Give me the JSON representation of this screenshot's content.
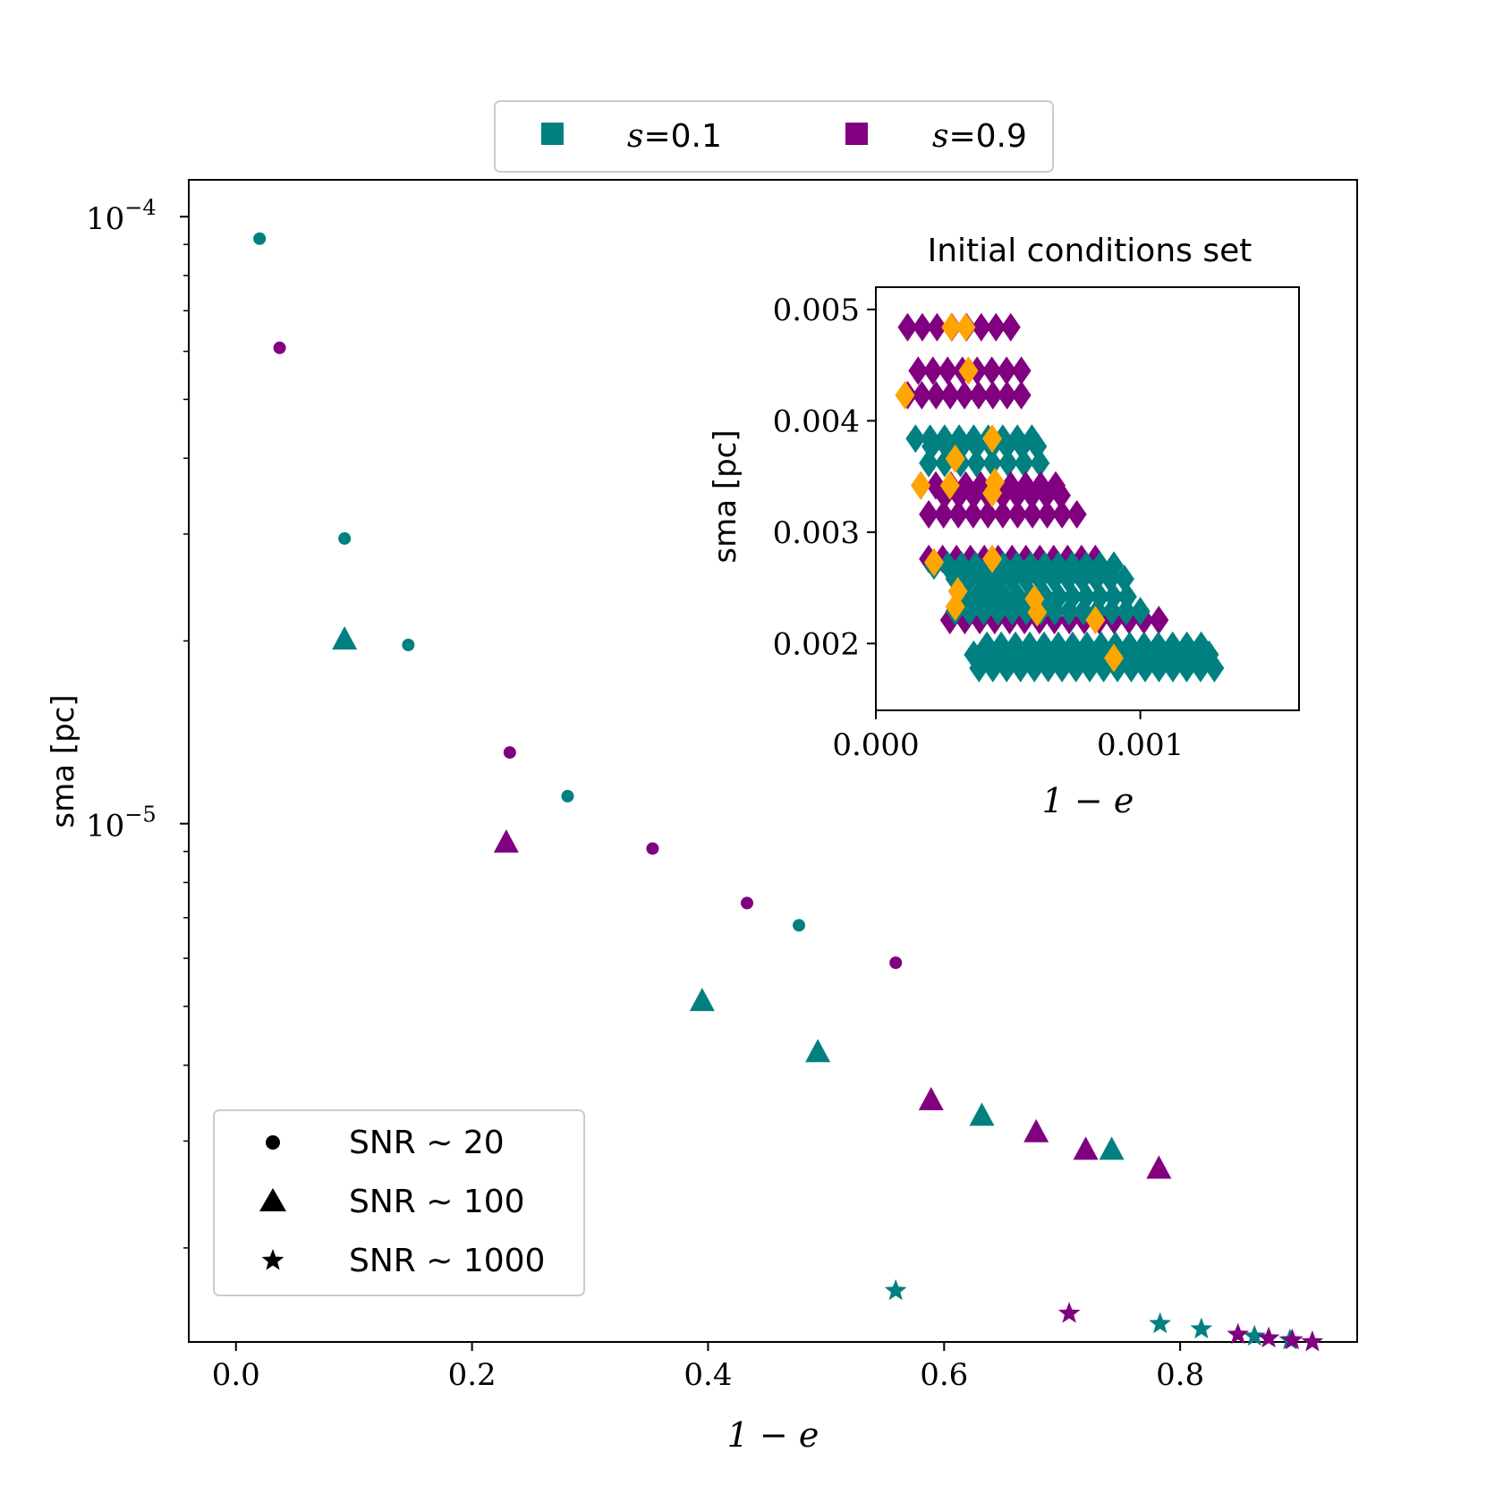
{
  "chart_data": [
    {
      "type": "scatter",
      "title": "",
      "xlabel": "1 − e",
      "ylabel": "sma [pc]",
      "xlim": [
        -0.04,
        0.95
      ],
      "ylim": [
        1.4e-06,
        0.000115
      ],
      "yscale": "log",
      "grid": false,
      "xticks": [
        {
          "value": 0.0,
          "label": "0.0"
        },
        {
          "value": 0.2,
          "label": "0.2"
        },
        {
          "value": 0.4,
          "label": "0.4"
        },
        {
          "value": 0.6,
          "label": "0.6"
        },
        {
          "value": 0.8,
          "label": "0.8"
        }
      ],
      "yticks": [
        {
          "value": 0.0001,
          "base": "10",
          "exp": "−4"
        },
        {
          "value": 1e-05,
          "base": "10",
          "exp": "−5"
        }
      ],
      "color_legend": {
        "placement": "above plot",
        "entries": [
          {
            "label_var": "s",
            "label_eq": "=0.1",
            "color": "#008080"
          },
          {
            "label_var": "s",
            "label_eq": "=0.9",
            "color": "#800080"
          }
        ]
      },
      "marker_legend": {
        "placement": "lower-left",
        "entries": [
          {
            "marker": "circle",
            "label": "SNR ∼ 20"
          },
          {
            "marker": "triangle",
            "label": "SNR ∼ 100"
          },
          {
            "marker": "star",
            "label": "SNR ∼ 1000"
          }
        ]
      },
      "series": [
        {
          "name": "s=0.1, SNR ~ 20",
          "color": "#008080",
          "marker": "circle",
          "points": [
            [
              0.02,
              9.2e-05
            ],
            [
              0.092,
              2.95e-05
            ],
            [
              0.146,
              1.97e-05
            ],
            [
              0.281,
              1.11e-05
            ],
            [
              0.477,
              6.8e-06
            ]
          ]
        },
        {
          "name": "s=0.9, SNR ~ 20",
          "color": "#800080",
          "marker": "circle",
          "points": [
            [
              0.037,
              6.08e-05
            ],
            [
              0.232,
              1.31e-05
            ],
            [
              0.353,
              9.1e-06
            ],
            [
              0.433,
              7.4e-06
            ],
            [
              0.559,
              5.9e-06
            ]
          ]
        },
        {
          "name": "s=0.1, SNR ~ 100",
          "color": "#008080",
          "marker": "triangle",
          "points": [
            [
              0.092,
              2.01e-05
            ],
            [
              0.395,
              5.1e-06
            ],
            [
              0.493,
              4.2e-06
            ],
            [
              0.632,
              3.3e-06
            ],
            [
              0.742,
              2.9e-06
            ]
          ]
        },
        {
          "name": "s=0.9, SNR ~ 100",
          "color": "#800080",
          "marker": "triangle",
          "points": [
            [
              0.229,
              9.3e-06
            ],
            [
              0.589,
              3.5e-06
            ],
            [
              0.678,
              3.1e-06
            ],
            [
              0.72,
              2.9e-06
            ],
            [
              0.782,
              2.7e-06
            ]
          ]
        },
        {
          "name": "s=0.1, SNR ~ 1000",
          "color": "#008080",
          "marker": "star",
          "points": [
            [
              0.559,
              1.7e-06
            ],
            [
              0.783,
              1.5e-06
            ],
            [
              0.818,
              1.47e-06
            ],
            [
              0.863,
              1.43e-06
            ],
            [
              0.893,
              1.41e-06
            ]
          ]
        },
        {
          "name": "s=0.9, SNR ~ 1000",
          "color": "#800080",
          "marker": "star",
          "points": [
            [
              0.706,
              1.56e-06
            ],
            [
              0.849,
              1.44e-06
            ],
            [
              0.875,
              1.42e-06
            ],
            [
              0.895,
              1.41e-06
            ],
            [
              0.912,
              1.4e-06
            ]
          ]
        }
      ]
    },
    {
      "type": "scatter",
      "title": "Initial conditions set",
      "xlabel": "1 − e",
      "ylabel": "sma [pc]",
      "xlim": [
        0.0,
        0.0016
      ],
      "ylim": [
        0.0014,
        0.0052
      ],
      "yscale": "linear",
      "grid": false,
      "xticks": [
        {
          "value": 0.0,
          "label": "0.000"
        },
        {
          "value": 0.001,
          "label": "0.001"
        }
      ],
      "yticks": [
        {
          "value": 0.002,
          "label": "0.002"
        },
        {
          "value": 0.003,
          "label": "0.003"
        },
        {
          "value": 0.004,
          "label": "0.004"
        },
        {
          "value": 0.005,
          "label": "0.005"
        }
      ],
      "marker": "diamond",
      "rows": [
        {
          "color": "#800080",
          "y": 0.00484,
          "x_start": 0.00012,
          "x_end": 0.00051,
          "count": 8
        },
        {
          "color": "#800080",
          "y": 0.00445,
          "x_start": 0.00016,
          "x_end": 0.00055,
          "count": 8
        },
        {
          "color": "#800080",
          "y": 0.00423,
          "x_start": 0.00012,
          "x_end": 0.00055,
          "count": 9
        },
        {
          "color": "#008080",
          "y": 0.00384,
          "x_start": 0.00015,
          "x_end": 0.00059,
          "count": 9
        },
        {
          "color": "#008080",
          "y": 0.00377,
          "x_start": 0.00021,
          "x_end": 0.00061,
          "count": 8
        },
        {
          "color": "#008080",
          "y": 0.00362,
          "x_start": 0.0002,
          "x_end": 0.00062,
          "count": 8
        },
        {
          "color": "#800080",
          "y": 0.00342,
          "x_start": 0.00017,
          "x_end": 0.00068,
          "count": 10
        },
        {
          "color": "#800080",
          "y": 0.00333,
          "x_start": 0.00026,
          "x_end": 0.0007,
          "count": 9
        },
        {
          "color": "#800080",
          "y": 0.00316,
          "x_start": 0.0002,
          "x_end": 0.00076,
          "count": 11
        },
        {
          "color": "#800080",
          "y": 0.00276,
          "x_start": 0.0002,
          "x_end": 0.00083,
          "count": 13
        },
        {
          "color": "#008080",
          "y": 0.0027,
          "x_start": 0.00022,
          "x_end": 0.0009,
          "count": 14
        },
        {
          "color": "#008080",
          "y": 0.00258,
          "x_start": 0.0003,
          "x_end": 0.00094,
          "count": 13
        },
        {
          "color": "#008080",
          "y": 0.00242,
          "x_start": 0.00033,
          "x_end": 0.00095,
          "count": 13
        },
        {
          "color": "#800080",
          "y": 0.00221,
          "x_start": 0.00028,
          "x_end": 0.00107,
          "count": 15
        },
        {
          "color": "#008080",
          "y": 0.00229,
          "x_start": 0.0003,
          "x_end": 0.001,
          "count": 14
        },
        {
          "color": "#008080",
          "y": 0.0019,
          "x_start": 0.00037,
          "x_end": 0.00126,
          "count": 18
        },
        {
          "color": "#008080",
          "y": 0.00178,
          "x_start": 0.00039,
          "x_end": 0.00128,
          "count": 18
        },
        {
          "color": "#008080",
          "y": 0.00198,
          "x_start": 0.00042,
          "x_end": 0.00123,
          "count": 16
        }
      ],
      "highlight_points": {
        "color": "#FFA500",
        "points": [
          [
            0.000285,
            0.00484
          ],
          [
            0.00034,
            0.00484
          ],
          [
            0.00035,
            0.00445
          ],
          [
            0.00011,
            0.00423
          ],
          [
            0.00044,
            0.00384
          ],
          [
            0.0003,
            0.00366
          ],
          [
            0.00017,
            0.00342
          ],
          [
            0.00028,
            0.00342
          ],
          [
            0.00045,
            0.00345
          ],
          [
            0.00044,
            0.00335
          ],
          [
            0.00022,
            0.00273
          ],
          [
            0.00044,
            0.00276
          ],
          [
            0.00031,
            0.00247
          ],
          [
            0.0003,
            0.00233
          ],
          [
            0.0006,
            0.0024
          ],
          [
            0.00061,
            0.00228
          ],
          [
            0.00083,
            0.00221
          ],
          [
            0.0009,
            0.00187
          ]
        ]
      }
    }
  ]
}
